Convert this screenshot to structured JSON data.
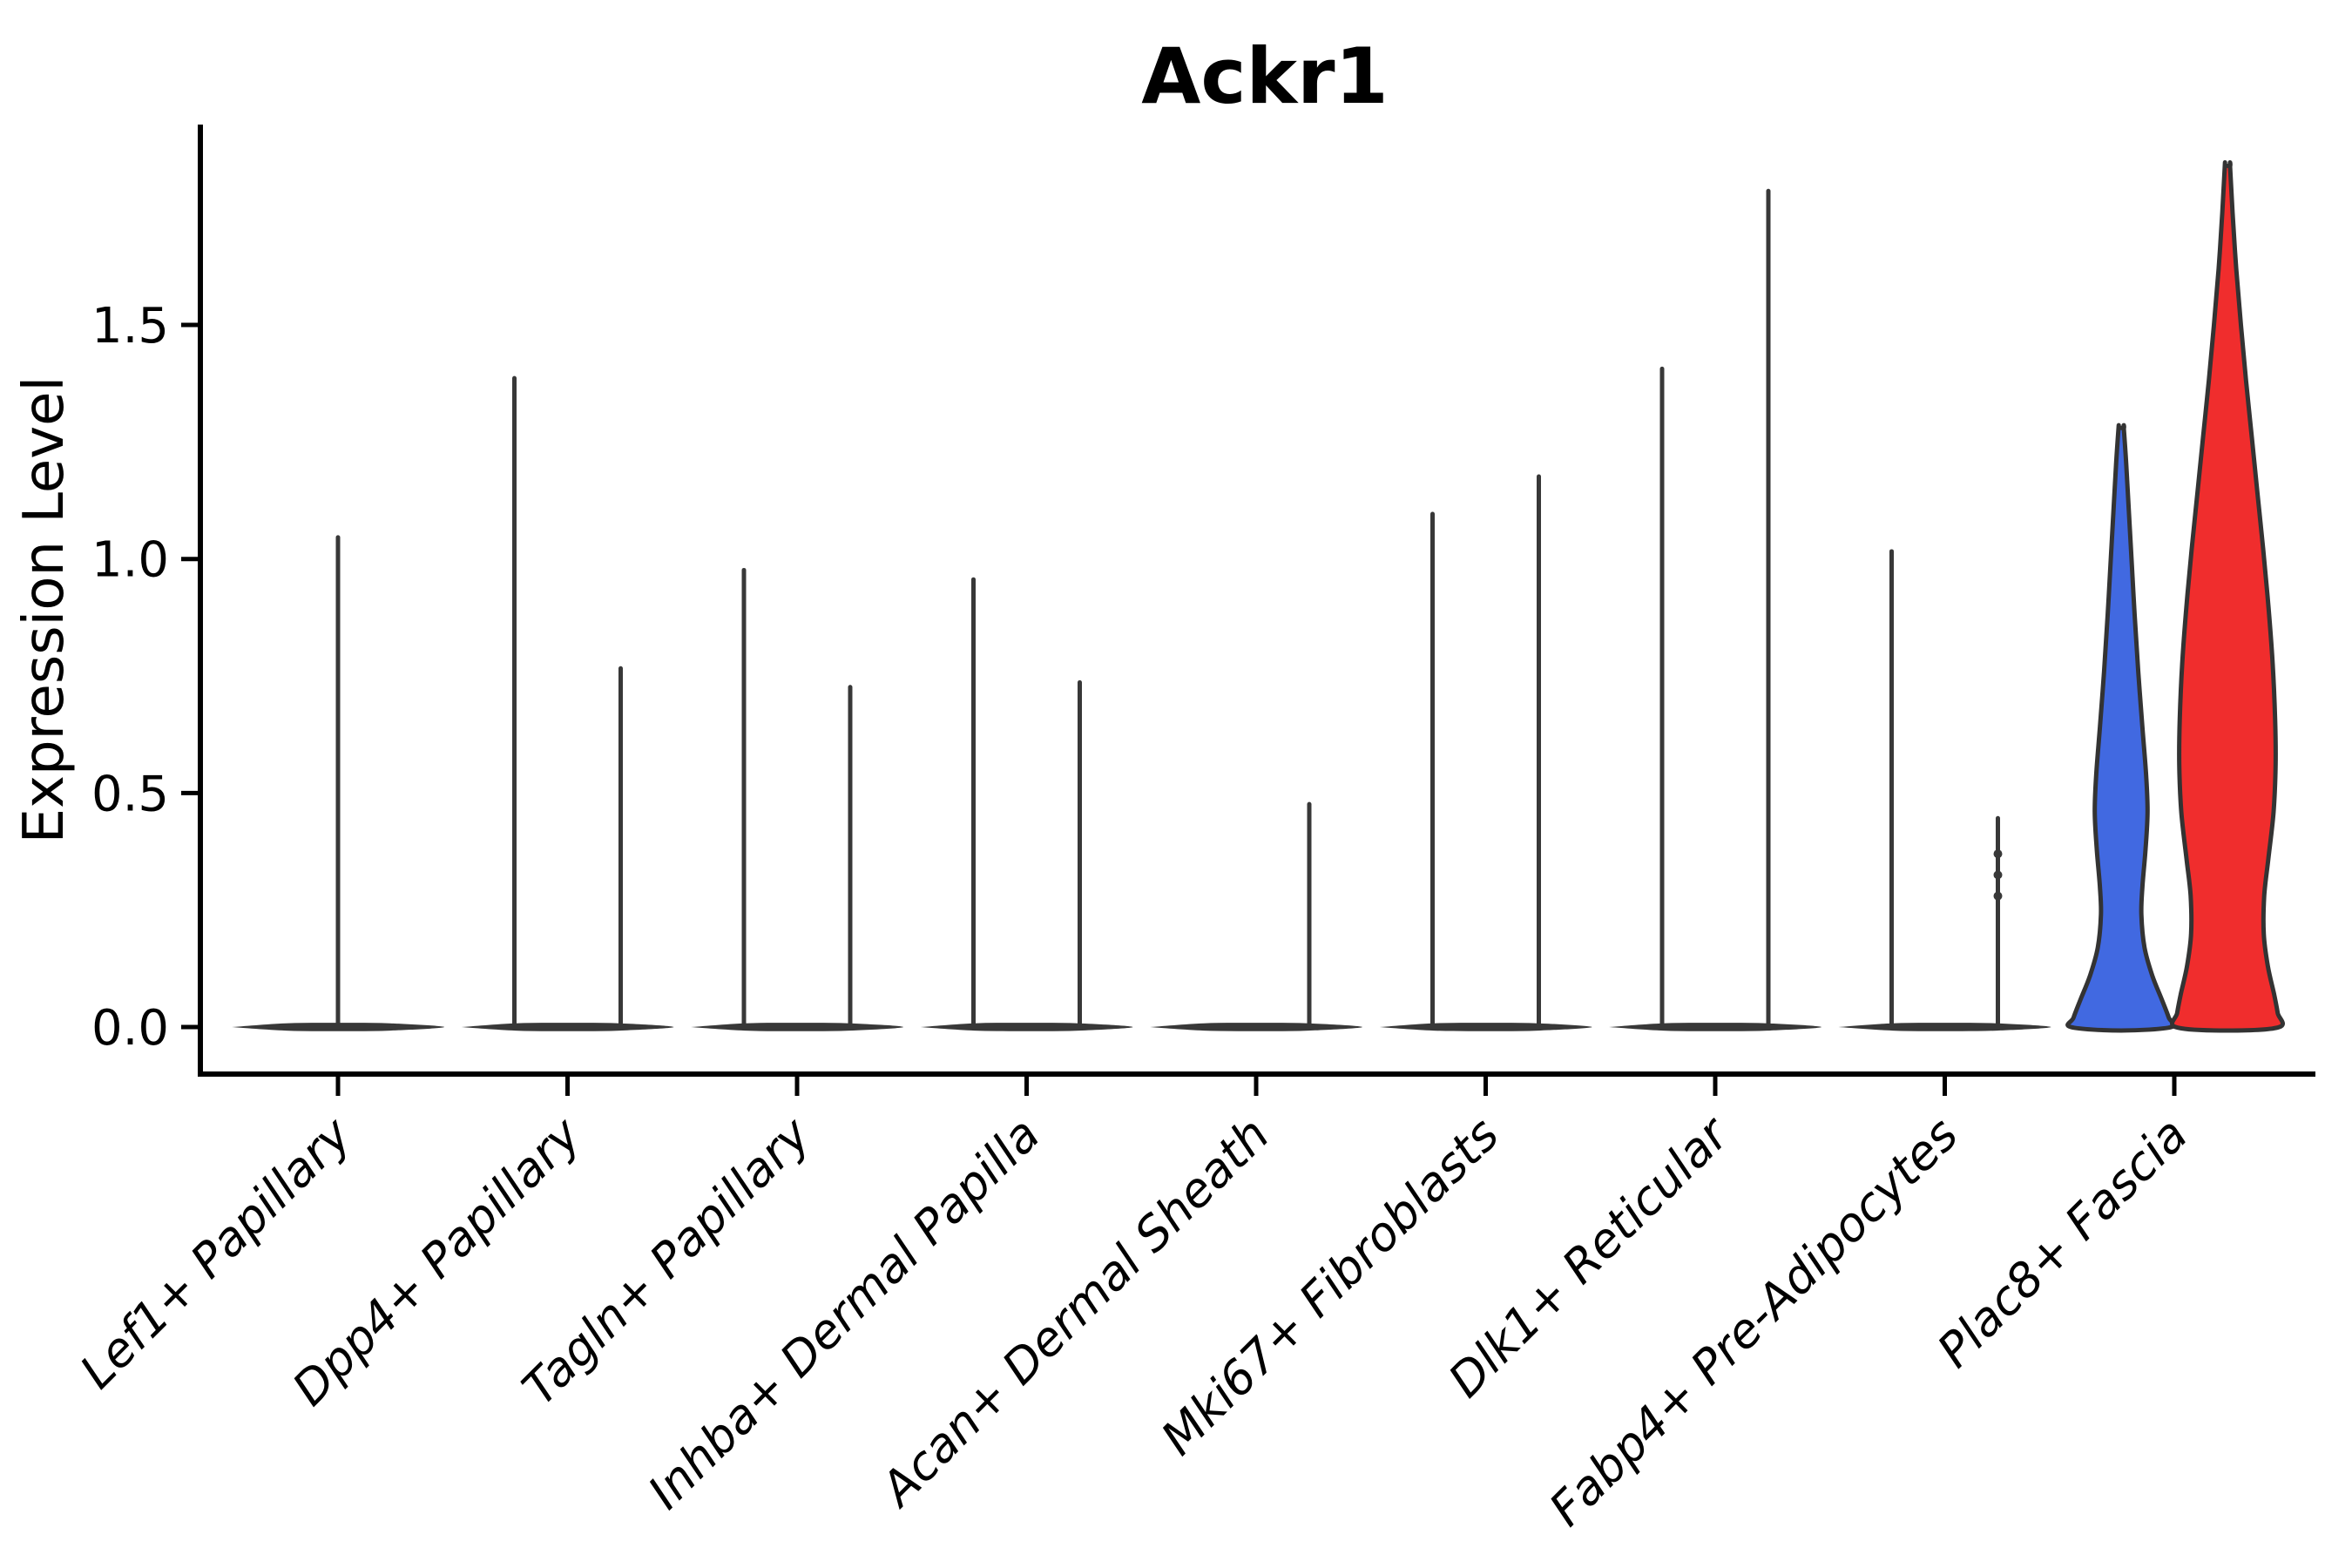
{
  "figure": {
    "title": "Ackr1",
    "ylabel": "Expression Level"
  },
  "chart_data": {
    "type": "violin",
    "title": "Ackr1",
    "xlabel": "",
    "ylabel": "Expression Level",
    "ylim": [
      -0.1,
      1.93
    ],
    "yticks": [
      {
        "value": 0.0,
        "label": "0.0"
      },
      {
        "value": 0.5,
        "label": "0.5"
      },
      {
        "value": 1.0,
        "label": "1.0"
      },
      {
        "value": 1.5,
        "label": "1.5"
      }
    ],
    "grid": false,
    "legend": "none",
    "categories": [
      "Lef1+ Papillary",
      "Dpp4+ Papillary",
      "Tagln+ Papillary",
      "Inhba+ Dermal Papilla",
      "Acan+ Dermal Sheath",
      "Mki67+ Fibroblasts",
      "Dlk1+ Reticular",
      "Fabp4+ Pre-Adipocytes",
      "Plac8+ Fascia"
    ],
    "colors": {
      "spike": "#383838",
      "outline": "#333333",
      "blue_fill": "#4169E1",
      "red_fill": "#F02D2D"
    },
    "violins": [
      {
        "category": "Lef1+ Papillary",
        "parts": [
          {
            "side": "center",
            "style": "spike",
            "peak": 1.05
          }
        ]
      },
      {
        "category": "Dpp4+ Papillary",
        "parts": [
          {
            "side": "left",
            "style": "spike",
            "peak": 1.39
          },
          {
            "side": "right",
            "style": "spike",
            "peak": 0.77
          }
        ]
      },
      {
        "category": "Tagln+ Papillary",
        "parts": [
          {
            "side": "left",
            "style": "spike",
            "peak": 0.98
          },
          {
            "side": "right",
            "style": "spike",
            "peak": 0.73
          }
        ]
      },
      {
        "category": "Inhba+ Dermal Papilla",
        "parts": [
          {
            "side": "left",
            "style": "spike",
            "peak": 0.96
          },
          {
            "side": "right",
            "style": "spike",
            "peak": 0.74
          }
        ]
      },
      {
        "category": "Acan+ Dermal Sheath",
        "parts": [
          {
            "side": "left",
            "style": "flat",
            "peak": 0.0
          },
          {
            "side": "right",
            "style": "spike",
            "peak": 0.48
          }
        ]
      },
      {
        "category": "Mki67+ Fibroblasts",
        "parts": [
          {
            "side": "left",
            "style": "spike",
            "peak": 1.1
          },
          {
            "side": "right",
            "style": "spike",
            "peak": 1.18
          }
        ]
      },
      {
        "category": "Dlk1+ Reticular",
        "parts": [
          {
            "side": "left",
            "style": "spike",
            "peak": 1.41
          },
          {
            "side": "right",
            "style": "spike",
            "peak": 1.79
          }
        ]
      },
      {
        "category": "Fabp4+ Pre-Adipocytes",
        "parts": [
          {
            "side": "left",
            "style": "spike",
            "peak": 1.02
          },
          {
            "side": "right",
            "style": "spike",
            "peak": 0.45,
            "dots": [
              0.28,
              0.325,
              0.37
            ]
          }
        ]
      },
      {
        "category": "Plac8+ Fascia",
        "parts": [
          {
            "side": "left",
            "style": "density",
            "peak": 1.28,
            "fill": "#4169E1",
            "profile": [
              [
                1.28,
                0.04
              ],
              [
                1.2,
                0.1
              ],
              [
                1.1,
                0.15
              ],
              [
                1.0,
                0.2
              ],
              [
                0.88,
                0.26
              ],
              [
                0.76,
                0.33
              ],
              [
                0.64,
                0.41
              ],
              [
                0.54,
                0.48
              ],
              [
                0.46,
                0.51
              ],
              [
                0.38,
                0.47
              ],
              [
                0.3,
                0.41
              ],
              [
                0.24,
                0.39
              ],
              [
                0.17,
                0.45
              ],
              [
                0.11,
                0.6
              ],
              [
                0.06,
                0.78
              ],
              [
                0.02,
                0.92
              ],
              [
                0.0,
                0.97
              ]
            ]
          },
          {
            "side": "right",
            "style": "density",
            "peak": 1.84,
            "fill": "#F02D2D",
            "profile": [
              [
                1.84,
                0.04
              ],
              [
                1.74,
                0.1
              ],
              [
                1.62,
                0.17
              ],
              [
                1.5,
                0.26
              ],
              [
                1.38,
                0.36
              ],
              [
                1.26,
                0.47
              ],
              [
                1.14,
                0.58
              ],
              [
                1.02,
                0.69
              ],
              [
                0.9,
                0.79
              ],
              [
                0.78,
                0.87
              ],
              [
                0.66,
                0.92
              ],
              [
                0.56,
                0.93
              ],
              [
                0.46,
                0.89
              ],
              [
                0.36,
                0.79
              ],
              [
                0.28,
                0.71
              ],
              [
                0.2,
                0.7
              ],
              [
                0.13,
                0.78
              ],
              [
                0.07,
                0.9
              ],
              [
                0.03,
                0.97
              ],
              [
                0.0,
                1.0
              ]
            ]
          }
        ]
      }
    ]
  }
}
